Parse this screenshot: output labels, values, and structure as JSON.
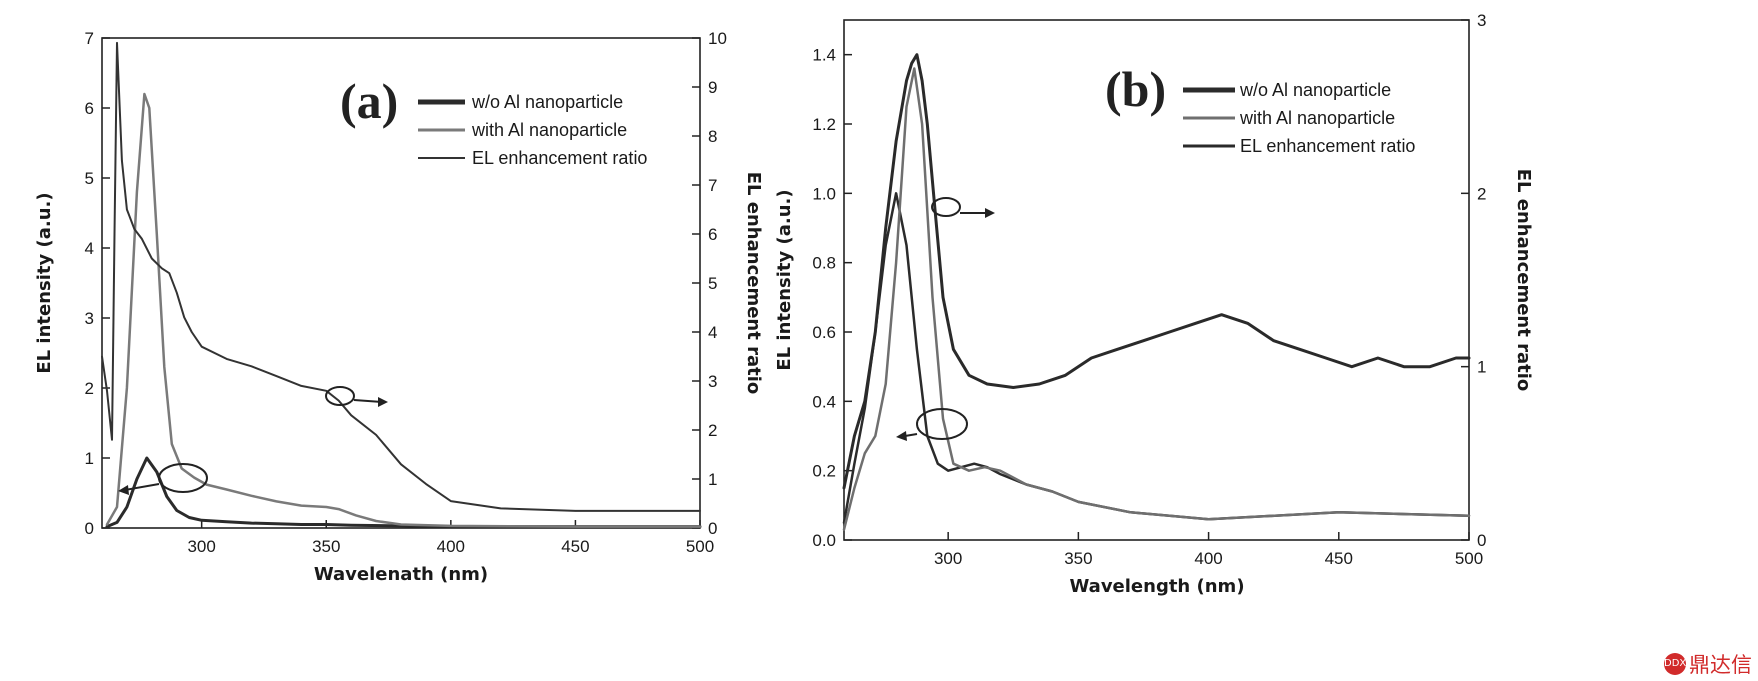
{
  "chart_data": [
    {
      "type": "line",
      "panel_label": "(a)",
      "xlabel": "Wavelenath (nm)",
      "ylabel": "EL intensity (a.u.)",
      "y2label": "EL enhancement ratio",
      "xlim": [
        260,
        500
      ],
      "ylim": [
        0,
        7
      ],
      "y2lim": [
        0,
        10
      ],
      "xticks": [
        "300",
        "350",
        "400",
        "450",
        "500"
      ],
      "yticks": [
        "0",
        "1",
        "2",
        "3",
        "4",
        "5",
        "6",
        "7"
      ],
      "y2ticks": [
        "0",
        "1",
        "2",
        "3",
        "4",
        "5",
        "6",
        "7",
        "8",
        "9",
        "10"
      ],
      "legend": [
        "w/o Al nanoparticle",
        "with Al nanoparticle",
        "EL enhancement ratio"
      ],
      "legend_position": "top-right",
      "series": [
        {
          "name": "w/o Al nanoparticle",
          "axis": "left",
          "color": "#2b2b2b",
          "x": [
            262,
            266,
            270,
            274,
            278,
            282,
            286,
            290,
            295,
            300,
            310,
            320,
            330,
            340,
            350,
            360,
            380,
            400,
            450,
            500
          ],
          "y": [
            0.02,
            0.08,
            0.3,
            0.7,
            1.0,
            0.8,
            0.45,
            0.25,
            0.15,
            0.11,
            0.09,
            0.07,
            0.06,
            0.05,
            0.05,
            0.04,
            0.03,
            0.02,
            0.02,
            0.02
          ]
        },
        {
          "name": "with Al nanoparticle",
          "axis": "left",
          "color": "#7a7a7a",
          "x": [
            262,
            266,
            270,
            274,
            277,
            279,
            282,
            285,
            288,
            292,
            297,
            302,
            310,
            320,
            330,
            340,
            350,
            355,
            362,
            370,
            380,
            400,
            450,
            500
          ],
          "y": [
            0.05,
            0.3,
            2.0,
            4.8,
            6.2,
            6.0,
            4.2,
            2.3,
            1.2,
            0.85,
            0.72,
            0.62,
            0.55,
            0.46,
            0.38,
            0.32,
            0.3,
            0.27,
            0.18,
            0.1,
            0.05,
            0.03,
            0.02,
            0.02
          ]
        },
        {
          "name": "EL enhancement ratio",
          "axis": "right",
          "color": "#333333",
          "x": [
            260,
            262,
            264,
            265,
            266,
            268,
            270,
            273,
            276,
            280,
            284,
            287,
            290,
            293,
            296,
            300,
            310,
            320,
            330,
            340,
            350,
            355,
            360,
            370,
            380,
            390,
            400,
            420,
            450,
            500
          ],
          "y": [
            3.5,
            2.8,
            1.8,
            6.0,
            9.9,
            7.5,
            6.5,
            6.1,
            5.9,
            5.5,
            5.3,
            5.2,
            4.8,
            4.3,
            4.0,
            3.7,
            3.45,
            3.3,
            3.1,
            2.9,
            2.8,
            2.6,
            2.3,
            1.9,
            1.3,
            0.9,
            0.55,
            0.4,
            0.35,
            0.35
          ]
        }
      ]
    },
    {
      "type": "line",
      "panel_label": "(b)",
      "xlabel": "Wavelength (nm)",
      "ylabel": "EL intensity (a.u.)",
      "y2label": "EL enhancement ratio",
      "xlim": [
        260,
        500
      ],
      "ylim": [
        0,
        1.5
      ],
      "y2lim": [
        0,
        3
      ],
      "xticks": [
        "300",
        "350",
        "400",
        "450",
        "500"
      ],
      "yticks": [
        "0.0",
        "0.2",
        "0.4",
        "0.6",
        "0.8",
        "1.0",
        "1.2",
        "1.4"
      ],
      "y2ticks": [
        "0",
        "1",
        "2",
        "3"
      ],
      "legend": [
        "w/o Al nanoparticle",
        "with Al nanoparticle",
        "EL enhancement ratio"
      ],
      "legend_position": "top-right",
      "series": [
        {
          "name": "w/o Al nanoparticle",
          "axis": "left",
          "color": "#2b2b2b",
          "x": [
            260,
            264,
            268,
            272,
            276,
            280,
            284,
            288,
            292,
            296,
            300,
            305,
            310,
            315,
            320,
            330,
            340,
            350,
            370,
            400,
            450,
            500
          ],
          "y": [
            0.05,
            0.22,
            0.38,
            0.6,
            0.85,
            1.0,
            0.85,
            0.55,
            0.3,
            0.22,
            0.2,
            0.21,
            0.22,
            0.21,
            0.19,
            0.16,
            0.14,
            0.11,
            0.08,
            0.06,
            0.08,
            0.07
          ]
        },
        {
          "name": "with Al nanoparticle",
          "axis": "left",
          "color": "#6f6f6f",
          "x": [
            260,
            264,
            268,
            272,
            276,
            280,
            284,
            287,
            290,
            294,
            298,
            302,
            308,
            314,
            320,
            330,
            340,
            350,
            370,
            400,
            450,
            500
          ],
          "y": [
            0.03,
            0.15,
            0.25,
            0.3,
            0.45,
            0.8,
            1.25,
            1.36,
            1.2,
            0.7,
            0.35,
            0.22,
            0.2,
            0.21,
            0.2,
            0.16,
            0.14,
            0.11,
            0.08,
            0.06,
            0.08,
            0.07
          ]
        },
        {
          "name": "EL enhancement ratio",
          "axis": "right",
          "color": "#2a2a2a",
          "x": [
            260,
            264,
            268,
            272,
            276,
            280,
            284,
            286,
            288,
            290,
            292,
            295,
            298,
            302,
            308,
            315,
            325,
            335,
            345,
            355,
            365,
            375,
            385,
            395,
            405,
            415,
            425,
            435,
            445,
            455,
            465,
            475,
            485,
            495,
            500
          ],
          "y": [
            0.3,
            0.6,
            0.8,
            1.2,
            1.8,
            2.3,
            2.65,
            2.75,
            2.8,
            2.65,
            2.4,
            1.9,
            1.4,
            1.1,
            0.95,
            0.9,
            0.88,
            0.9,
            0.95,
            1.05,
            1.1,
            1.15,
            1.2,
            1.25,
            1.3,
            1.25,
            1.15,
            1.1,
            1.05,
            1.0,
            1.05,
            1.0,
            1.0,
            1.05,
            1.05
          ]
        }
      ]
    }
  ],
  "watermark": {
    "text": "鼎达信",
    "logo_text": "DDX"
  }
}
